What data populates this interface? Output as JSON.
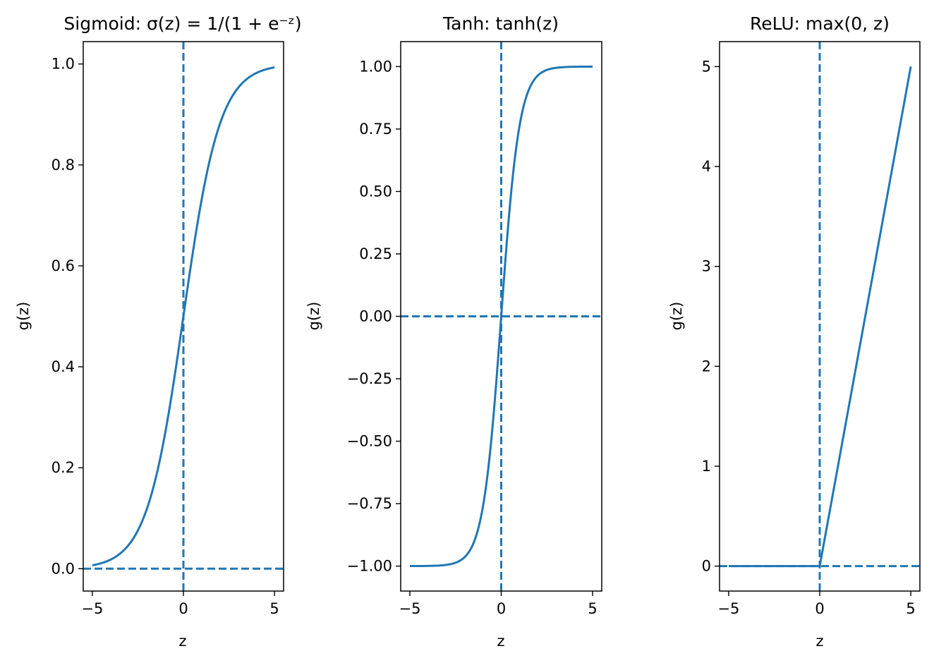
{
  "colors": {
    "series": "#1f77b4",
    "axes": "#000000",
    "background": "#ffffff"
  },
  "chart_data": [
    {
      "type": "line",
      "function": "sigmoid",
      "title": "Sigmoid: σ(z) = 1/(1 + e⁻ᶻ)",
      "xlabel": "z",
      "ylabel": "g(z)",
      "xlim": [
        -5.5,
        5.5
      ],
      "ylim": [
        -0.0443,
        1.0443
      ],
      "xticks": [
        -5,
        0,
        5
      ],
      "xtick_labels": [
        "−5",
        "0",
        "5"
      ],
      "yticks": [
        0,
        0.2,
        0.4,
        0.6,
        0.8,
        1.0
      ],
      "ytick_labels": [
        "0.0",
        "0.2",
        "0.4",
        "0.6",
        "0.8",
        "1.0"
      ],
      "x_range": [
        -5,
        5
      ],
      "reference_lines": {
        "vertical_x": 0,
        "horizontal_y": 0
      }
    },
    {
      "type": "line",
      "function": "tanh",
      "title": "Tanh: tanh(z)",
      "xlabel": "z",
      "ylabel": "g(z)",
      "xlim": [
        -5.5,
        5.5
      ],
      "ylim": [
        -1.1,
        1.1
      ],
      "xticks": [
        -5,
        0,
        5
      ],
      "xtick_labels": [
        "−5",
        "0",
        "5"
      ],
      "yticks": [
        -1.0,
        -0.75,
        -0.5,
        -0.25,
        0,
        0.25,
        0.5,
        0.75,
        1.0
      ],
      "ytick_labels": [
        "−1.00",
        "−0.75",
        "−0.50",
        "−0.25",
        "0.00",
        "0.25",
        "0.50",
        "0.75",
        "1.00"
      ],
      "x_range": [
        -5,
        5
      ],
      "reference_lines": {
        "vertical_x": 0,
        "horizontal_y": 0
      }
    },
    {
      "type": "line",
      "function": "relu",
      "title": "ReLU: max(0, z)",
      "xlabel": "z",
      "ylabel": "g(z)",
      "xlim": [
        -5.5,
        5.5
      ],
      "ylim": [
        -0.25,
        5.25
      ],
      "xticks": [
        -5,
        0,
        5
      ],
      "xtick_labels": [
        "−5",
        "0",
        "5"
      ],
      "yticks": [
        0,
        1,
        2,
        3,
        4,
        5
      ],
      "ytick_labels": [
        "0",
        "1",
        "2",
        "3",
        "4",
        "5"
      ],
      "x_range": [
        -5,
        5
      ],
      "reference_lines": {
        "vertical_x": 0,
        "horizontal_y": 0
      }
    }
  ]
}
